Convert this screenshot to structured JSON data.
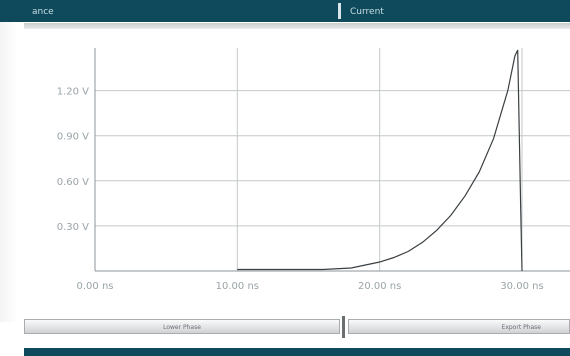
{
  "header": {
    "left_tab": "ance",
    "right_tab": "Current"
  },
  "buttons": {
    "left_label": "Lower Phase",
    "right_label": "Export Phase"
  },
  "colors": {
    "header_bg": "#0f4a5c",
    "curve": "#3a3f42",
    "grid": "#c4c8ca",
    "tick_label": "#9aa4a8"
  },
  "chart_data": {
    "type": "line",
    "title": "",
    "xlabel": "",
    "ylabel": "",
    "xlim": [
      0,
      30
    ],
    "ylim": [
      0,
      1.47
    ],
    "grid": true,
    "x_ticks": [
      0,
      10,
      20,
      30
    ],
    "x_tick_labels": [
      "0.00 ns",
      "10.00 ns",
      "20.00 ns",
      "30.00 ns"
    ],
    "y_ticks": [
      0.3,
      0.6,
      0.9,
      1.2
    ],
    "y_tick_labels": [
      "0.30 V",
      "0.60 V",
      "0.90 V",
      "1.20 V"
    ],
    "series": [
      {
        "x": [
          10.0,
          12.0,
          14.0,
          16.0,
          18.0,
          19.0,
          20.0,
          21.0,
          22.0,
          23.0,
          24.0,
          25.0,
          26.0,
          27.0,
          28.0,
          29.0,
          29.5,
          29.7,
          29.9,
          30.0
        ],
        "y": [
          0.01,
          0.01,
          0.01,
          0.01,
          0.02,
          0.04,
          0.06,
          0.09,
          0.13,
          0.19,
          0.27,
          0.37,
          0.5,
          0.66,
          0.88,
          1.2,
          1.43,
          1.47,
          0.45,
          0.0
        ]
      }
    ]
  }
}
